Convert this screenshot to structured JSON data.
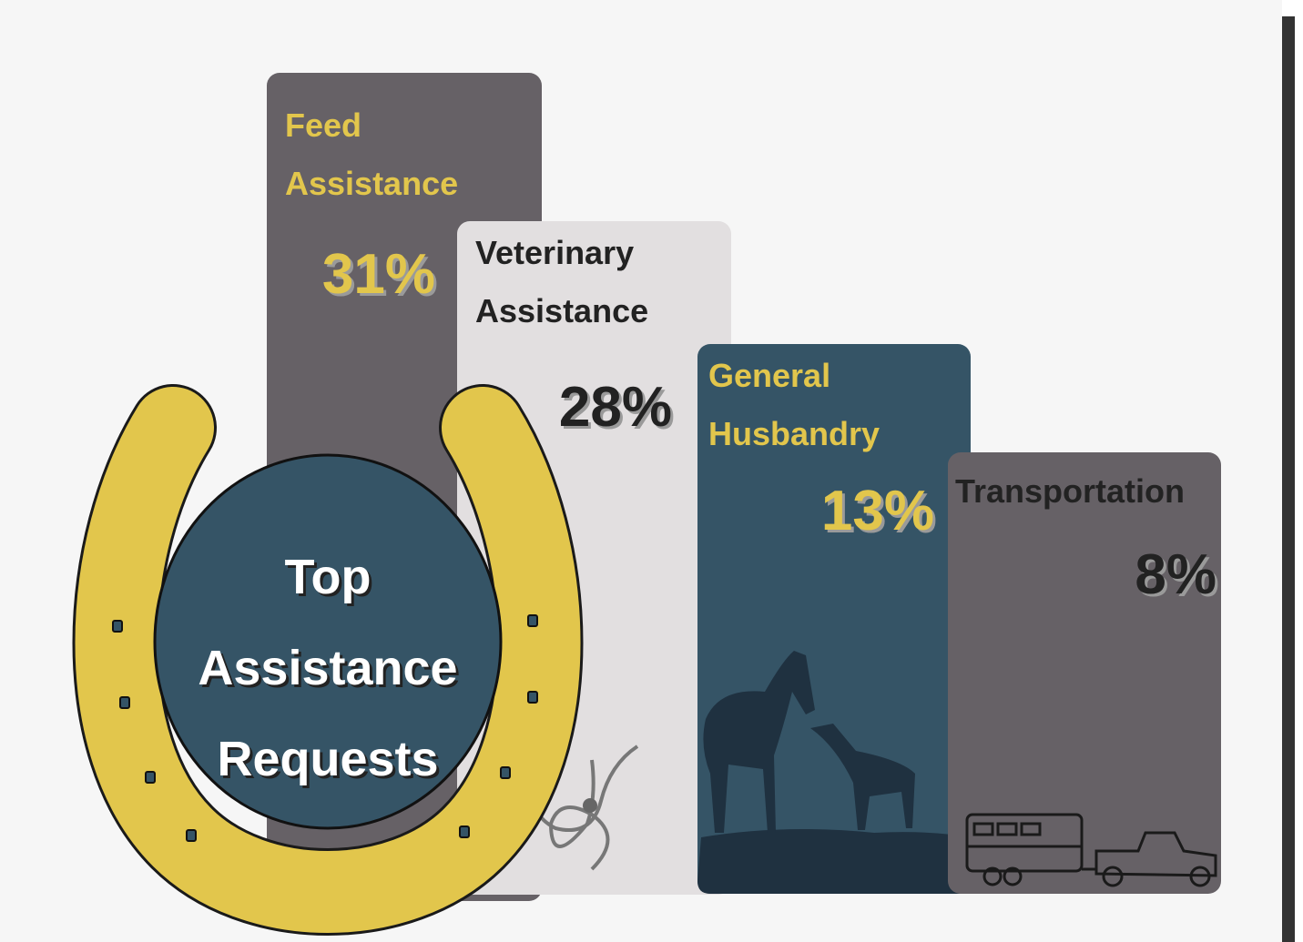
{
  "title_lines": [
    "Top",
    "Assistance",
    "Requests"
  ],
  "items": [
    {
      "label_lines": [
        "Feed",
        "Assistance"
      ],
      "value": "31%"
    },
    {
      "label_lines": [
        "Veterinary",
        "Assistance"
      ],
      "value": "28%"
    },
    {
      "label_lines": [
        "General",
        "Husbandry"
      ],
      "value": "13%"
    },
    {
      "label_lines": [
        "Transportation"
      ],
      "value": "8%"
    }
  ]
}
